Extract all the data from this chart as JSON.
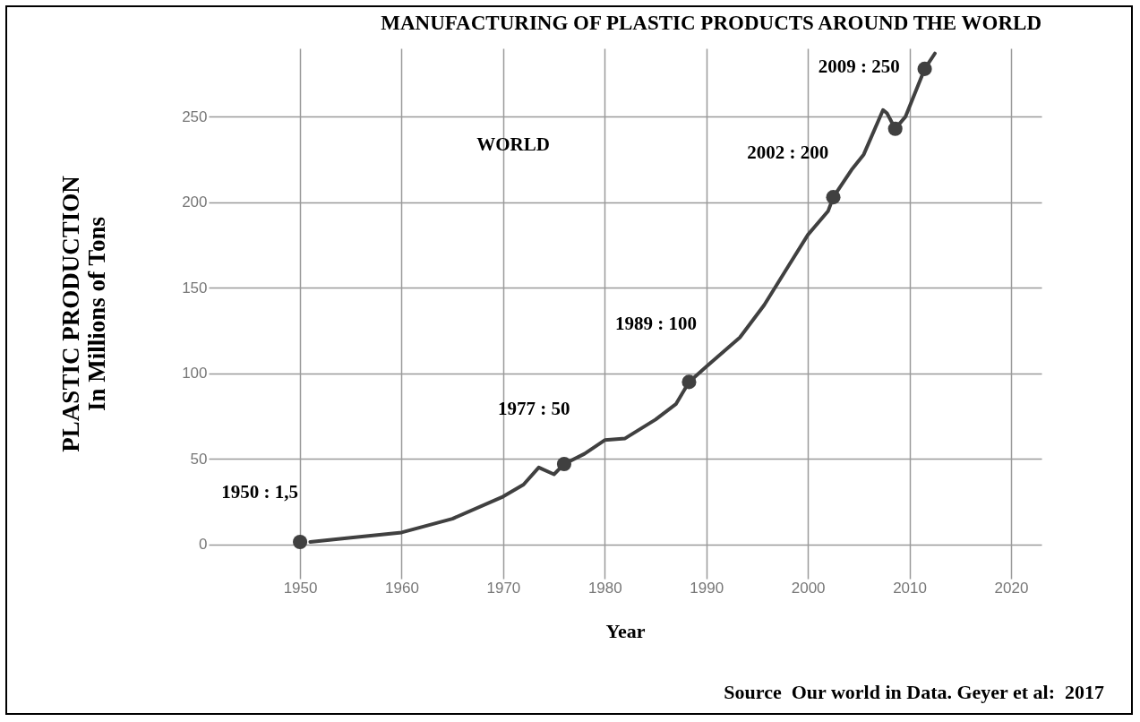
{
  "chart_data": {
    "type": "line",
    "title": "MANUFACTURING OF PLASTIC PRODUCTS AROUND THE WORLD",
    "xlabel": "Year",
    "ylabel": "PLASTIC PRODUCTION\nIn Millions of Tons",
    "xlim": [
      1941,
      2023
    ],
    "ylim": [
      -20,
      290
    ],
    "xticks": [
      1950,
      1960,
      1970,
      1980,
      1990,
      2000,
      2010,
      2020
    ],
    "yticks": [
      0,
      50,
      100,
      150,
      200,
      250
    ],
    "grid": true,
    "series": [
      {
        "color": "#404040",
        "x": [
          1951,
          1955,
          1960,
          1965,
          1970,
          1972,
          1973.5,
          1975,
          1976,
          1978,
          1980,
          1982,
          1985,
          1987,
          1988.3,
          1990,
          1993.3,
          1995.7,
          1998,
          2000,
          2002,
          2002.5,
          2004.3,
          2005.5,
          2007.4,
          2007.8,
          2008.6,
          2009.6,
          2011.5,
          2012.5
        ],
        "values": [
          1.5,
          4,
          7,
          15,
          28,
          35,
          45,
          41,
          47,
          53,
          61,
          62,
          73,
          82,
          95,
          104,
          121,
          140,
          162,
          181,
          195,
          203,
          219,
          228,
          254,
          252,
          243,
          250,
          278,
          287
        ]
      },
      {
        "type": "scatter",
        "color": "#404040",
        "marker": "circle",
        "x": [
          1950,
          1976,
          1988.3,
          2002.5,
          2008.6,
          2011.5
        ],
        "values": [
          1.5,
          47,
          95,
          203,
          243,
          278
        ]
      }
    ],
    "annotations": [
      {
        "text": "1950 : 1,5",
        "x": 1950,
        "y": 1.5
      },
      {
        "text": "1977 : 50",
        "x": 1977,
        "y": 50
      },
      {
        "text": "1989 : 100",
        "x": 1989,
        "y": 100
      },
      {
        "text": "2002 : 200",
        "x": 2002,
        "y": 200
      },
      {
        "text": "2009 : 250",
        "x": 2009,
        "y": 250
      },
      "WORLD",
      "Source  Our world in Data. Geyer et al:  2017"
    ]
  }
}
